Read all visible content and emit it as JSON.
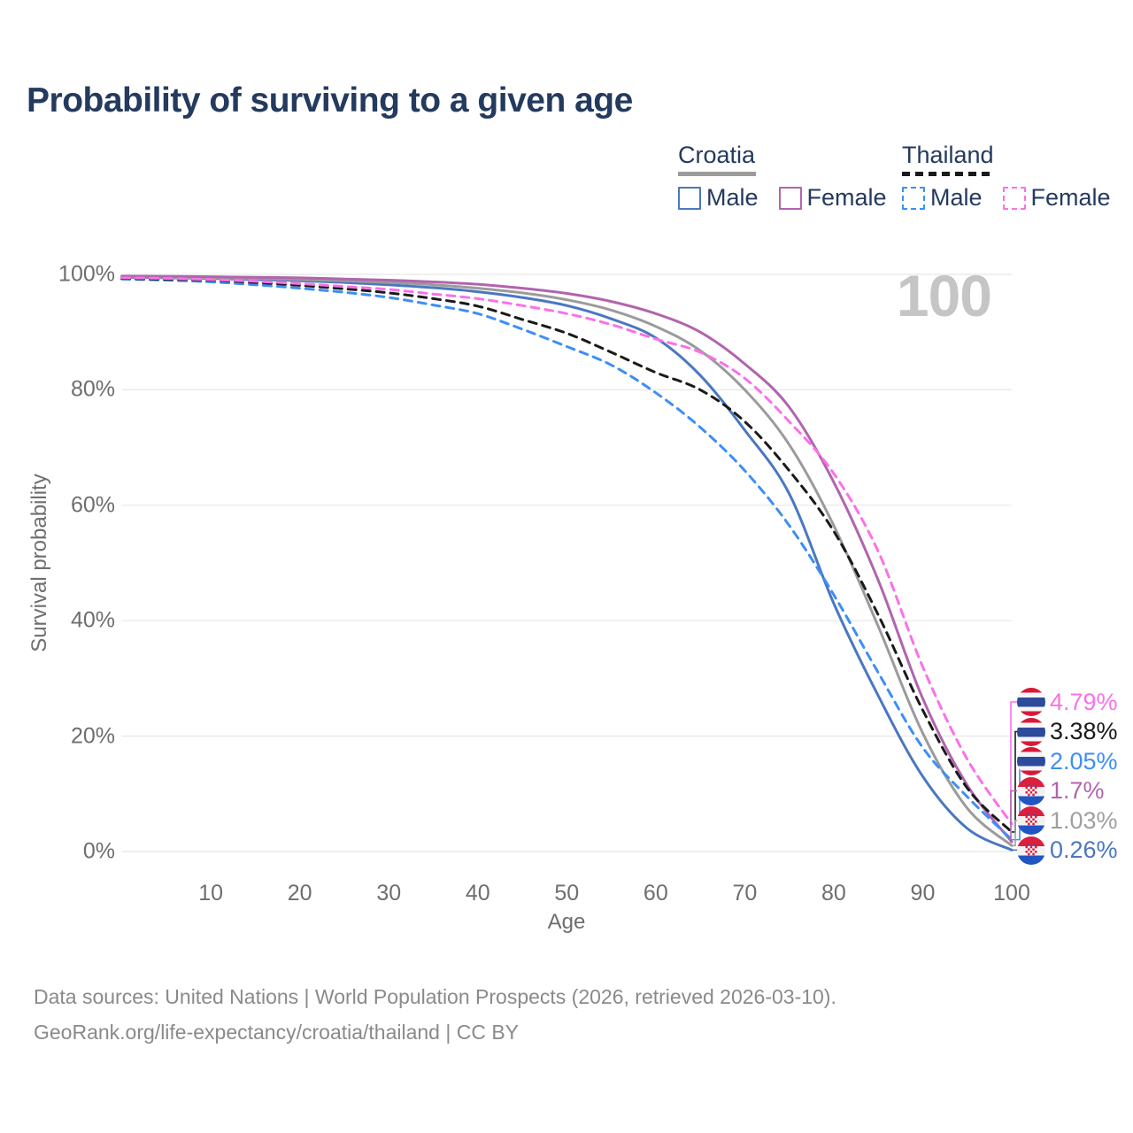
{
  "title": "Probability of surviving to a given age",
  "watermark": "100",
  "colors": {
    "title_text": "#243a5e",
    "axis_text": "#6e6e6e",
    "gridline": "#e7e7e7",
    "watermark": "#c5c5c5",
    "footer_text": "#8a8a8a",
    "croatia_male": "#4a77c0",
    "croatia_total": "#9b9b9b",
    "croatia_female": "#b164ae",
    "thailand_male": "#3d8ef7",
    "thailand_total": "#1a1a1a",
    "thailand_female": "#fb71e7"
  },
  "legend": {
    "groups": [
      {
        "label": "Croatia",
        "line_color": "#9b9b9b",
        "line_style": "solid",
        "items": [
          {
            "label": "Male",
            "color": "#4a77c0",
            "style": "solid"
          },
          {
            "label": "Female",
            "color": "#b164ae",
            "style": "solid"
          }
        ]
      },
      {
        "label": "Thailand",
        "line_color": "#1a1a1a",
        "line_style": "dashed",
        "items": [
          {
            "label": "Male",
            "color": "#3d8ef7",
            "style": "dashed"
          },
          {
            "label": "Female",
            "color": "#fb71e7",
            "style": "dashed"
          }
        ]
      }
    ]
  },
  "chart_data": {
    "type": "line",
    "title": "Probability of surviving to a given age",
    "xlabel": "Age",
    "ylabel": "Survival probability",
    "xlim": [
      0,
      100
    ],
    "ylim": [
      0,
      100
    ],
    "grid": "horizontal",
    "legend_position": "top-right",
    "x_ticks": [
      {
        "value": 10,
        "label": "10"
      },
      {
        "value": 20,
        "label": "20"
      },
      {
        "value": 30,
        "label": "30"
      },
      {
        "value": 40,
        "label": "40"
      },
      {
        "value": 50,
        "label": "50"
      },
      {
        "value": 60,
        "label": "60"
      },
      {
        "value": 70,
        "label": "70"
      },
      {
        "value": 80,
        "label": "80"
      },
      {
        "value": 90,
        "label": "90"
      },
      {
        "value": 100,
        "label": "100"
      }
    ],
    "y_ticks": [
      {
        "value": 0,
        "label": "0%"
      },
      {
        "value": 20,
        "label": "20%"
      },
      {
        "value": 40,
        "label": "40%"
      },
      {
        "value": 60,
        "label": "60%"
      },
      {
        "value": 80,
        "label": "80%"
      },
      {
        "value": 100,
        "label": "100%"
      }
    ],
    "x": [
      0,
      5,
      10,
      15,
      20,
      25,
      30,
      35,
      40,
      45,
      50,
      55,
      60,
      65,
      70,
      75,
      80,
      85,
      90,
      95,
      100
    ],
    "series": [
      {
        "name": "Croatia Male",
        "country": "Croatia",
        "sex": "Male",
        "color": "#4a77c0",
        "dash": "solid",
        "end_value": 0.26,
        "end_label": "0.26%",
        "values": [
          99.5,
          99.4,
          99.3,
          99.1,
          98.9,
          98.6,
          98.2,
          97.7,
          97.0,
          96.0,
          94.6,
          92.3,
          89.0,
          82.5,
          73.0,
          62.0,
          43.0,
          27.0,
          13.0,
          4.0,
          0.26
        ]
      },
      {
        "name": "Croatia Total",
        "country": "Croatia",
        "sex": "Both",
        "color": "#9b9b9b",
        "dash": "solid",
        "end_value": 1.03,
        "end_label": "1.03%",
        "values": [
          99.6,
          99.5,
          99.4,
          99.3,
          99.1,
          98.9,
          98.6,
          98.2,
          97.6,
          96.8,
          95.6,
          93.8,
          91.0,
          86.8,
          80.0,
          70.5,
          56.5,
          39.0,
          20.5,
          7.5,
          1.03
        ]
      },
      {
        "name": "Croatia Female",
        "country": "Croatia",
        "sex": "Female",
        "color": "#b164ae",
        "dash": "solid",
        "end_value": 1.7,
        "end_label": "1.7%",
        "values": [
          99.7,
          99.65,
          99.6,
          99.5,
          99.4,
          99.2,
          99.0,
          98.7,
          98.3,
          97.6,
          96.7,
          95.3,
          93.2,
          90.0,
          84.5,
          77.0,
          64.0,
          47.0,
          26.5,
          11.5,
          1.7
        ]
      },
      {
        "name": "Thailand Male",
        "country": "Thailand",
        "sex": "Male",
        "color": "#3d8ef7",
        "dash": "dashed",
        "end_value": 2.05,
        "end_label": "2.05%",
        "values": [
          99.2,
          99.0,
          98.7,
          98.2,
          97.6,
          96.9,
          96.0,
          94.7,
          93.2,
          90.5,
          87.5,
          84.3,
          79.5,
          73.5,
          66.0,
          56.5,
          44.5,
          31.0,
          18.0,
          9.5,
          2.05
        ]
      },
      {
        "name": "Thailand Total",
        "country": "Thailand",
        "sex": "Both",
        "color": "#1a1a1a",
        "dash": "dashed",
        "end_value": 3.38,
        "end_label": "3.38%",
        "values": [
          99.3,
          99.15,
          99.0,
          98.6,
          98.1,
          97.5,
          96.8,
          95.8,
          94.5,
          92.2,
          89.8,
          86.5,
          83.0,
          80.0,
          74.5,
          66.0,
          55.5,
          41.0,
          24.5,
          11.0,
          3.38
        ]
      },
      {
        "name": "Thailand Female",
        "country": "Thailand",
        "sex": "Female",
        "color": "#fb71e7",
        "dash": "dashed",
        "end_value": 4.79,
        "end_label": "4.79%",
        "values": [
          99.4,
          99.3,
          99.1,
          98.8,
          98.4,
          97.9,
          97.4,
          96.6,
          95.8,
          94.6,
          93.2,
          91.3,
          88.8,
          86.5,
          82.0,
          74.5,
          65.5,
          52.0,
          32.0,
          16.0,
          4.79
        ]
      }
    ]
  },
  "end_labels": [
    {
      "label": "4.79%",
      "value": 4.79,
      "color": "#fb71e7",
      "flag": "thailand",
      "series": "Thailand Female"
    },
    {
      "label": "3.38%",
      "value": 3.38,
      "color": "#1a1a1a",
      "flag": "thailand",
      "series": "Thailand Total"
    },
    {
      "label": "2.05%",
      "value": 2.05,
      "color": "#3d8ef7",
      "flag": "thailand",
      "series": "Thailand Male"
    },
    {
      "label": "1.7%",
      "value": 1.7,
      "color": "#b164ae",
      "flag": "croatia",
      "series": "Croatia Female"
    },
    {
      "label": "1.03%",
      "value": 1.03,
      "color": "#a0a0a0",
      "flag": "croatia",
      "series": "Croatia Total"
    },
    {
      "label": "0.26%",
      "value": 0.26,
      "color": "#4a77c0",
      "flag": "croatia",
      "series": "Croatia Male"
    }
  ],
  "footer": {
    "line1": "Data sources: United Nations | World Population Prospects (2026, retrieved 2026-03-10).",
    "line2": "GeoRank.org/life-expectancy/croatia/thailand | CC BY"
  }
}
